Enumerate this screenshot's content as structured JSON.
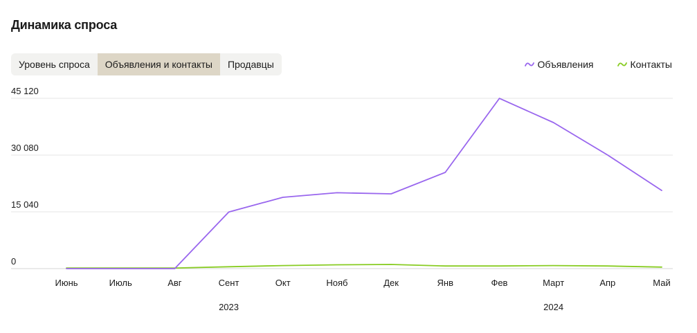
{
  "header": {
    "title": "Динамика спроса"
  },
  "tabs": [
    {
      "label": "Уровень спроса",
      "active": false
    },
    {
      "label": "Объявления и контакты",
      "active": true
    },
    {
      "label": "Продавцы",
      "active": false
    }
  ],
  "colors": {
    "ads": "#9966ee",
    "contacts": "#88cc22",
    "grid": "#e6e6e6",
    "tab_active": "#ddd6c6"
  },
  "chart_data": {
    "type": "line",
    "title": "Динамика спроса",
    "categories": [
      "Июнь",
      "Июль",
      "Авг",
      "Сент",
      "Окт",
      "Нояб",
      "Дек",
      "Янв",
      "Фев",
      "Март",
      "Апр",
      "Май"
    ],
    "year_labels": [
      {
        "label": "2023",
        "at": "Сент"
      },
      {
        "label": "2024",
        "at": "Март"
      }
    ],
    "y_ticks": [
      {
        "value": 0,
        "label": "0"
      },
      {
        "value": 15040,
        "label": "15 040"
      },
      {
        "value": 30080,
        "label": "30 080"
      },
      {
        "value": 45120,
        "label": "45 120"
      }
    ],
    "ylim": [
      0,
      45120
    ],
    "grid": true,
    "legend_position": "top-right",
    "series": [
      {
        "name": "Объявления",
        "color": "#9966ee",
        "values": [
          0,
          0,
          0,
          15000,
          18900,
          20100,
          19800,
          25500,
          45100,
          38700,
          30100,
          20700
        ]
      },
      {
        "name": "Контакты",
        "color": "#88cc22",
        "values": [
          150,
          150,
          150,
          500,
          800,
          1000,
          1100,
          700,
          700,
          800,
          700,
          400
        ]
      }
    ]
  }
}
